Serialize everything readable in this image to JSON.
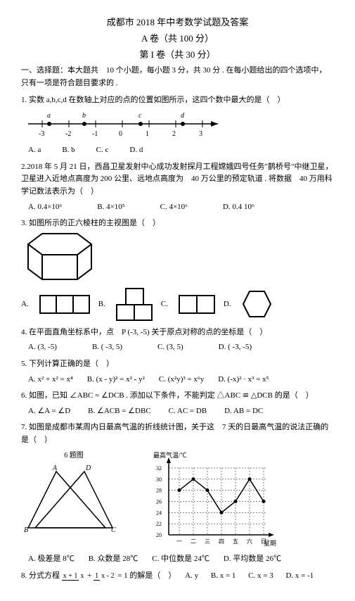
{
  "header": {
    "title1": "成都市 2018 年中考数学试题及答案",
    "title2": "A 卷（共 100 分）",
    "title3": "第 I 卷（共 30 分）"
  },
  "intro": "一、选择题：本大题共　10 个小题，每小题 3 分，共 30 分 . 在每小题给出的四个选项中，只有一项是符合题目要求的 .",
  "q1": {
    "stem": "1. 实数 a,b,c,d 在数轴上对应的点的位置如图所示，这四个数中最大的是（　）",
    "labels": [
      "-3",
      "-2",
      "-1",
      "0",
      "1",
      "2",
      "3"
    ],
    "points": [
      "a",
      "b",
      "c",
      "d"
    ],
    "opts": [
      "A. a",
      "B. b",
      "C. c",
      "D. d"
    ]
  },
  "q2": {
    "stem": "2.2018 年 5 月 21 日，西昌卫星发射中心成功发射探月工程嫦娥四号任务\"鹊桥号\"中继卫星，卫星进入近地点高度为 200 公里、远地点高度为　40 万公里的预定轨道 . 将数据　40 万用科学记数法表示为（　）",
    "opts": [
      "A. 0.4×10⁶",
      "B. 4×10⁵",
      "C. 4×10⁶",
      "D. 0.4 10⁶"
    ]
  },
  "q3": {
    "stem": "3. 如图所示的正六棱柱的主视图是（　）",
    "opts": [
      "A.",
      "B.",
      "C.",
      "D."
    ]
  },
  "q4": {
    "stem": "4. 在平面直角坐标系中，点　P (-3, -5) 关于原点对称的点的坐标是（　）",
    "opts": [
      "A. (3, -5)",
      "B. ( -3, 5)",
      "C. (3, 5)",
      "D. ( -3, -5)"
    ]
  },
  "q5": {
    "stem": "5. 下列计算正确的是（　）",
    "opts": [
      "A. x² + x² = x⁴",
      "B. (x - y)² = x² - y²",
      "C. (x²y)³ = x⁶y",
      "D. (-x)² · x³ = x⁵"
    ]
  },
  "q6": {
    "stem": "6. 如图，已知 ∠ABC = ∠DCB . 添加以下条件，不能判定 △ABC ≌ △DCB 的是（　）",
    "opts": [
      "A. ∠A = ∠D",
      "B. ∠ACB = ∠DBC",
      "C. AC = DB",
      "D. AB = DC"
    ]
  },
  "q7": {
    "stem": "7. 如图是成都市某周内日最高气温的折线统计图，关于这　7 天的日最高气温的说法正确的是（　）",
    "fig6label": "6 题图",
    "chart": {
      "ylabel": "最高气温/℃",
      "xlabel": "星期",
      "xticks": [
        "一",
        "二",
        "三",
        "四",
        "五",
        "六",
        "日"
      ],
      "yticks": [
        "20",
        "22",
        "24",
        "26",
        "28",
        "30",
        "32"
      ],
      "values": [
        28,
        30,
        28,
        24,
        26,
        30,
        26
      ]
    },
    "opts": [
      "A. 极差是 8℃",
      "B. 众数是 28℃",
      "C. 中位数是 24℃",
      "D. 平均数是 26℃"
    ]
  },
  "q8": {
    "stem_prefix": "8. 分式方程",
    "stem_suffix": "的解是（　）",
    "opts": [
      "A. y",
      "B. x = 1",
      "C. x = 3",
      "D. x = -1"
    ]
  }
}
